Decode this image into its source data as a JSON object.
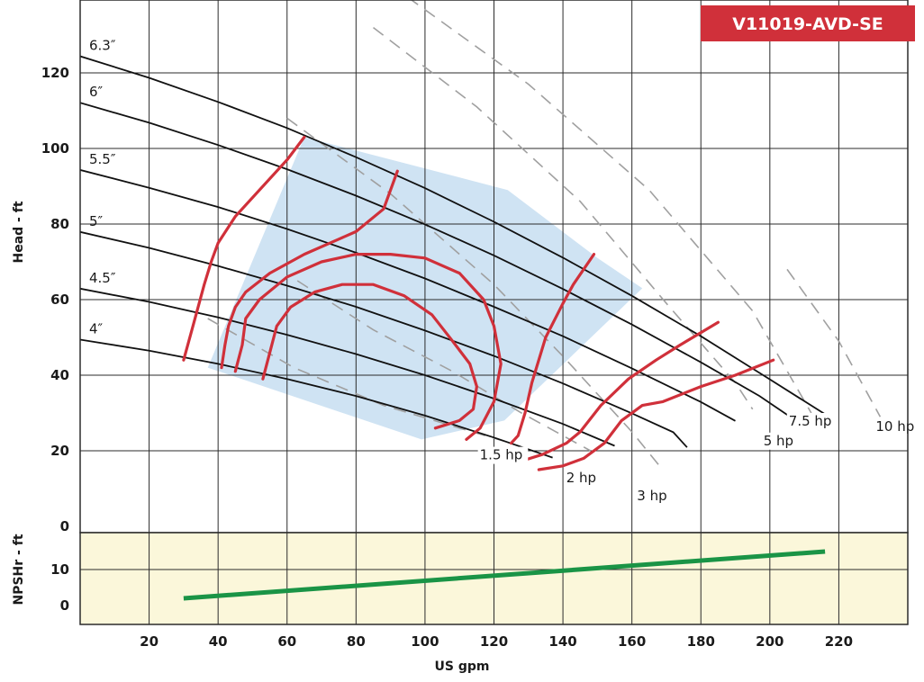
{
  "badge": {
    "text": "V11019-AVD-SE",
    "color": "#d0303a"
  },
  "chart_data": [
    {
      "type": "line",
      "name": "head",
      "ylabel": "Head - ft",
      "xlim": [
        0,
        240
      ],
      "ylim": [
        0,
        140
      ],
      "x_ticks": [
        20,
        40,
        60,
        80,
        100,
        120,
        140,
        160,
        180,
        200,
        220
      ],
      "y_ticks": [
        0,
        20,
        40,
        60,
        80,
        100,
        120
      ],
      "grid": true,
      "colors": {
        "impeller": "#111111",
        "efficiency": "#d0303a",
        "power": "#a0a0a0",
        "region": "#cfe3f3"
      },
      "impeller_curves": [
        {
          "label": "6.3″",
          "points": [
            [
              0,
              124.4
            ],
            [
              20,
              118.7
            ],
            [
              40,
              112.3
            ],
            [
              60,
              105.4
            ],
            [
              80,
              97.7
            ],
            [
              100,
              89.5
            ],
            [
              120,
              80.6
            ],
            [
              140,
              71.1
            ],
            [
              160,
              61.0
            ],
            [
              180,
              50.3
            ],
            [
              200,
              38.9
            ],
            [
              217,
              29.1
            ]
          ]
        },
        {
          "label": "6″",
          "points": [
            [
              0,
              112.1
            ],
            [
              20,
              106.8
            ],
            [
              40,
              100.9
            ],
            [
              60,
              94.5
            ],
            [
              80,
              87.5
            ],
            [
              100,
              79.9
            ],
            [
              120,
              71.7
            ],
            [
              140,
              62.8
            ],
            [
              160,
              53.4
            ],
            [
              180,
              43.4
            ],
            [
              197,
              34.5
            ],
            [
              207,
              28.3
            ]
          ]
        },
        {
          "label": "5.5″",
          "points": [
            [
              0,
              94.3
            ],
            [
              20,
              89.6
            ],
            [
              40,
              84.5
            ],
            [
              60,
              78.7
            ],
            [
              80,
              72.4
            ],
            [
              100,
              65.6
            ],
            [
              120,
              58.1
            ],
            [
              140,
              50.3
            ],
            [
              160,
              41.8
            ],
            [
              180,
              32.9
            ],
            [
              190,
              27.9
            ]
          ]
        },
        {
          "label": "5″",
          "points": [
            [
              0,
              77.9
            ],
            [
              20,
              73.7
            ],
            [
              40,
              68.9
            ],
            [
              60,
              63.7
            ],
            [
              80,
              58.1
            ],
            [
              100,
              51.8
            ],
            [
              120,
              45.1
            ],
            [
              140,
              37.8
            ],
            [
              160,
              29.9
            ],
            [
              172,
              24.9
            ],
            [
              176,
              20.9
            ]
          ]
        },
        {
          "label": "4.5″",
          "points": [
            [
              0,
              62.9
            ],
            [
              20,
              59.4
            ],
            [
              40,
              55.3
            ],
            [
              60,
              50.7
            ],
            [
              80,
              45.6
            ],
            [
              100,
              40.0
            ],
            [
              120,
              33.8
            ],
            [
              140,
              27.1
            ],
            [
              155,
              21.3
            ]
          ]
        },
        {
          "label": "4″",
          "points": [
            [
              0,
              49.4
            ],
            [
              20,
              46.5
            ],
            [
              40,
              43.0
            ],
            [
              60,
              39.0
            ],
            [
              80,
              34.5
            ],
            [
              100,
              29.3
            ],
            [
              120,
              23.5
            ],
            [
              137,
              18.2
            ]
          ]
        }
      ],
      "efficiency_curves": [
        [
          [
            30,
            44
          ],
          [
            33,
            54
          ],
          [
            36,
            64
          ],
          [
            38,
            70
          ],
          [
            40,
            75
          ],
          [
            45,
            82
          ],
          [
            52,
            89
          ],
          [
            60,
            97
          ],
          [
            65,
            103
          ]
        ],
        [
          [
            41,
            42
          ],
          [
            42,
            48
          ],
          [
            43,
            53
          ],
          [
            45,
            58
          ],
          [
            48,
            62
          ],
          [
            55,
            67
          ],
          [
            65,
            72
          ],
          [
            75,
            76
          ],
          [
            80,
            78
          ],
          [
            88,
            84
          ],
          [
            92,
            94
          ]
        ],
        [
          [
            45,
            41
          ],
          [
            47,
            48
          ],
          [
            48,
            55
          ],
          [
            52,
            60
          ],
          [
            60,
            66
          ],
          [
            70,
            70
          ],
          [
            80,
            72
          ],
          [
            90,
            72
          ],
          [
            100,
            71
          ],
          [
            110,
            67
          ],
          [
            117,
            60
          ],
          [
            120,
            53
          ],
          [
            122,
            43
          ],
          [
            120,
            33
          ],
          [
            116,
            26
          ],
          [
            112,
            23
          ]
        ],
        [
          [
            53,
            39
          ],
          [
            55,
            46
          ],
          [
            57,
            53
          ],
          [
            61,
            58
          ],
          [
            68,
            62
          ],
          [
            76,
            64
          ],
          [
            85,
            64
          ],
          [
            94,
            61
          ],
          [
            102,
            56
          ],
          [
            108,
            49
          ],
          [
            113,
            43
          ],
          [
            115,
            37
          ],
          [
            114,
            31
          ],
          [
            110,
            28
          ],
          [
            103,
            26
          ]
        ],
        [
          [
            125,
            22
          ],
          [
            127,
            24
          ],
          [
            129,
            30
          ],
          [
            131,
            38
          ],
          [
            135,
            50
          ],
          [
            140,
            59
          ],
          [
            143,
            64
          ],
          [
            149,
            72
          ]
        ],
        [
          [
            127,
            17
          ],
          [
            134,
            19
          ],
          [
            141,
            22
          ],
          [
            145,
            25
          ],
          [
            151,
            32
          ],
          [
            159,
            39
          ],
          [
            167,
            44
          ],
          [
            174,
            48
          ],
          [
            185,
            54
          ]
        ],
        [
          [
            133,
            15
          ],
          [
            140,
            16
          ],
          [
            146,
            18
          ],
          [
            152,
            22
          ],
          [
            157,
            28
          ],
          [
            163,
            32
          ],
          [
            169,
            33
          ],
          [
            180,
            37
          ],
          [
            190,
            40
          ],
          [
            201,
            44
          ]
        ]
      ],
      "power_curves": [
        {
          "label": "1.5 hp",
          "points": [
            [
              37,
              55
            ],
            [
              62,
              42
            ],
            [
              88,
              32
            ],
            [
              110,
              26
            ],
            [
              125,
              22
            ]
          ]
        },
        {
          "label": "2 hp",
          "points": [
            [
              63,
              65
            ],
            [
              85,
              52
            ],
            [
              108,
              41
            ],
            [
              128,
              30
            ],
            [
              148,
              20
            ]
          ]
        },
        {
          "label": "3 hp",
          "points": [
            [
              60,
              108
            ],
            [
              90,
              88
            ],
            [
              120,
              64
            ],
            [
              140,
              45
            ],
            [
              160,
              25
            ],
            [
              168,
              16
            ]
          ]
        },
        {
          "label": "5 hp",
          "points": [
            [
              85,
              132
            ],
            [
              115,
              111
            ],
            [
              145,
              86
            ],
            [
              170,
              59
            ],
            [
              190,
              38
            ],
            [
              195,
              31
            ]
          ]
        },
        {
          "label": "7.5 hp",
          "points": [
            [
              95,
              140
            ],
            [
              130,
              117
            ],
            [
              165,
              89
            ],
            [
              195,
              57
            ],
            [
              212,
              30
            ]
          ]
        },
        {
          "label": "10 hp",
          "points": [
            [
              205,
              68
            ],
            [
              220,
              49
            ],
            [
              232,
              29
            ]
          ]
        }
      ],
      "operating_region": [
        [
          37,
          42
        ],
        [
          65,
          103
        ],
        [
          124,
          89
        ],
        [
          150,
          71
        ],
        [
          163,
          63
        ],
        [
          123,
          28
        ],
        [
          99,
          23
        ]
      ]
    },
    {
      "type": "line",
      "name": "npshr",
      "ylabel": "NPSHr - ft",
      "xlabel": "US gpm",
      "xlim": [
        0,
        240
      ],
      "ylim": [
        0,
        19
      ],
      "y_ticks": [
        0,
        10
      ],
      "background": "#fbf7da",
      "series": [
        {
          "color": "#1a9446",
          "points": [
            [
              30,
              2
            ],
            [
              216,
              15
            ]
          ]
        }
      ]
    }
  ]
}
